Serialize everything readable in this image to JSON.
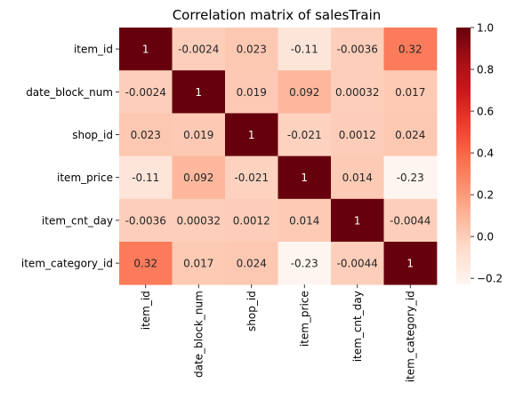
{
  "chart_data": {
    "type": "heatmap",
    "title": "Correlation matrix of salesTrain",
    "xlabel": "",
    "ylabel": "",
    "row_labels": [
      "item_id",
      "date_block_num",
      "shop_id",
      "item_price",
      "item_cnt_day",
      "item_category_id"
    ],
    "col_labels": [
      "item_id",
      "date_block_num",
      "shop_id",
      "item_price",
      "item_cnt_day",
      "item_category_id"
    ],
    "values": [
      [
        1,
        -0.0024,
        0.023,
        -0.11,
        -0.0036,
        0.32
      ],
      [
        -0.0024,
        1,
        0.019,
        0.092,
        0.00032,
        0.017
      ],
      [
        0.023,
        0.019,
        1,
        -0.021,
        0.0012,
        0.024
      ],
      [
        -0.11,
        0.092,
        -0.021,
        1,
        0.014,
        -0.23
      ],
      [
        -0.0036,
        0.00032,
        0.0012,
        0.014,
        1,
        -0.0044
      ],
      [
        0.32,
        0.017,
        0.024,
        -0.23,
        -0.0044,
        1
      ]
    ],
    "cell_labels": [
      [
        "1",
        "-0.0024",
        "0.023",
        "-0.11",
        "-0.0036",
        "0.32"
      ],
      [
        "-0.0024",
        "1",
        "0.019",
        "0.092",
        "0.00032",
        "0.017"
      ],
      [
        "0.023",
        "0.019",
        "1",
        "-0.021",
        "0.0012",
        "0.024"
      ],
      [
        "-0.11",
        "0.092",
        "-0.021",
        "1",
        "0.014",
        "-0.23"
      ],
      [
        "-0.0036",
        "0.00032",
        "0.0012",
        "0.014",
        "1",
        "-0.0044"
      ],
      [
        "0.32",
        "0.017",
        "0.024",
        "-0.23",
        "-0.0044",
        "1"
      ]
    ],
    "colormap": "Reds",
    "vmin": -0.23,
    "vmax": 1.0,
    "colorbar_ticks": [
      -0.2,
      0.0,
      0.2,
      0.4,
      0.6,
      0.8,
      1.0
    ],
    "colorbar_tick_labels": [
      "−0.2",
      "0.0",
      "0.2",
      "0.4",
      "0.6",
      "0.8",
      "1.0"
    ],
    "colorbar_position": "right",
    "grid": false
  }
}
